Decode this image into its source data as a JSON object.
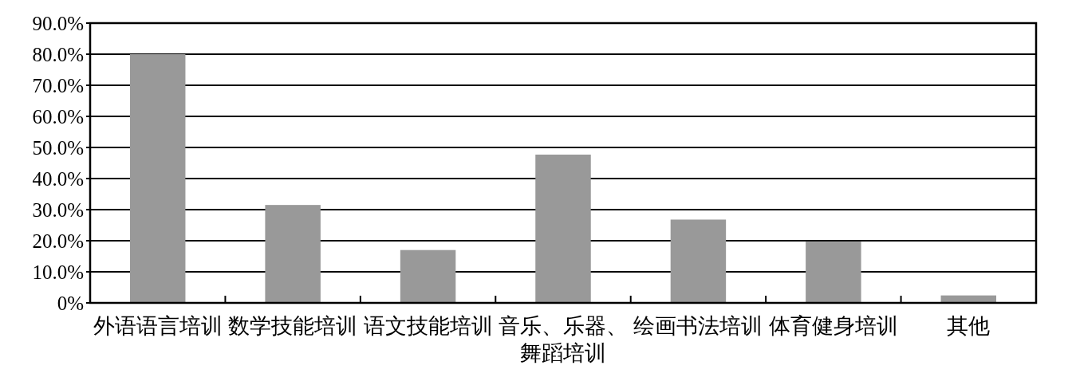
{
  "chart_data": {
    "type": "bar",
    "categories": [
      "外语语言培训",
      "数学技能培训",
      "语文技能培训",
      "音乐、乐器、舞蹈培训",
      "绘画书法培训",
      "体育健身培训",
      "其他"
    ],
    "values": [
      80.0,
      31.5,
      17.0,
      47.7,
      26.8,
      19.7,
      2.4
    ],
    "color": "#999999",
    "ylim": [
      0,
      90
    ],
    "yticks": [
      {
        "value": 0,
        "label": "0%"
      },
      {
        "value": 10,
        "label": "10.0%"
      },
      {
        "value": 20,
        "label": "20.0%"
      },
      {
        "value": 30,
        "label": "30.0%"
      },
      {
        "value": 40,
        "label": "40.0%"
      },
      {
        "value": 50,
        "label": "50.0%"
      },
      {
        "value": 60,
        "label": "60.0%"
      },
      {
        "value": 70,
        "label": "70.0%"
      },
      {
        "value": 80,
        "label": "80.0%"
      },
      {
        "value": 90,
        "label": "90.0%"
      }
    ],
    "grid": "y"
  }
}
